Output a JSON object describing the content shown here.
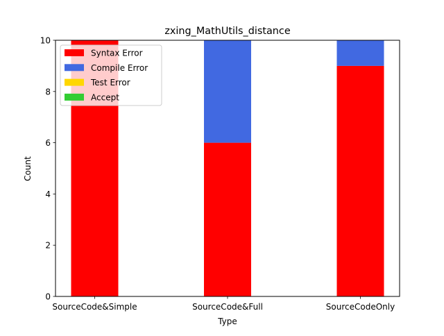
{
  "chart_data": {
    "type": "bar",
    "stacked": true,
    "title": "zxing_MathUtils_distance",
    "xlabel": "Type",
    "ylabel": "Count",
    "categories": [
      "SourceCode&Simple",
      "SourceCode&Full",
      "SourceCodeOnly"
    ],
    "ylim": [
      0,
      10
    ],
    "yticks": [
      0,
      2,
      4,
      6,
      8,
      10
    ],
    "grid": false,
    "legend_position": "upper-left",
    "series": [
      {
        "name": "Syntax Error",
        "color": "#ff0000",
        "values": [
          10,
          6,
          9
        ]
      },
      {
        "name": "Compile Error",
        "color": "#4169e1",
        "values": [
          0,
          4,
          1
        ]
      },
      {
        "name": "Test Error",
        "color": "#ffd700",
        "values": [
          0,
          0,
          0
        ]
      },
      {
        "name": "Accept",
        "color": "#32cd32",
        "values": [
          0,
          0,
          0
        ]
      }
    ]
  }
}
